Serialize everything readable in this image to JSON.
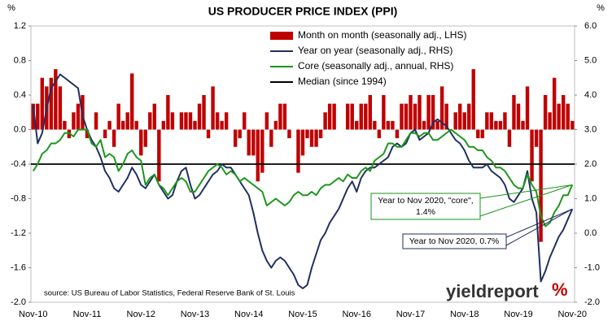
{
  "chart_data": {
    "type": "bar",
    "title": "US PRODUCER PRICE INDEX (PPI)",
    "y_unit": "%",
    "y2_unit": "%",
    "categories": [
      "Nov-10",
      null,
      null,
      null,
      null,
      null,
      null,
      null,
      null,
      null,
      null,
      null,
      "Nov-11",
      null,
      null,
      null,
      null,
      null,
      null,
      null,
      null,
      null,
      null,
      null,
      "Nov-12",
      null,
      null,
      null,
      null,
      null,
      null,
      null,
      null,
      null,
      null,
      null,
      "Nov-13",
      null,
      null,
      null,
      null,
      null,
      null,
      null,
      null,
      null,
      null,
      null,
      "Nov-14",
      null,
      null,
      null,
      null,
      null,
      null,
      null,
      null,
      null,
      null,
      null,
      "Nov-15",
      null,
      null,
      null,
      null,
      null,
      null,
      null,
      null,
      null,
      null,
      null,
      "Nov-16",
      null,
      null,
      null,
      null,
      null,
      null,
      null,
      null,
      null,
      null,
      null,
      "Nov-17",
      null,
      null,
      null,
      null,
      null,
      null,
      null,
      null,
      null,
      null,
      null,
      "Nov-18",
      null,
      null,
      null,
      null,
      null,
      null,
      null,
      null,
      null,
      null,
      null,
      "Nov-19",
      null,
      null,
      null,
      null,
      null,
      null,
      null,
      null,
      null,
      null,
      null,
      "Nov-20"
    ],
    "series": [
      {
        "name": "Month on month (seasonally adj., LHS)",
        "type": "bar",
        "color": "#c00000",
        "axis": "y",
        "values": [
          0.3,
          0.3,
          0.6,
          0.5,
          0.6,
          0.7,
          0.5,
          0.1,
          -0.1,
          0.2,
          0.3,
          0.4,
          -0.1,
          0.0,
          0.2,
          0.0,
          -0.1,
          0.1,
          -0.2,
          0.3,
          0.1,
          0.2,
          0.65,
          0.1,
          -0.3,
          -0.2,
          0.2,
          0.3,
          -0.6,
          0.1,
          0.4,
          0.2,
          0.0,
          0.2,
          0.2,
          0.2,
          0.1,
          0.3,
          0.4,
          -0.1,
          0.5,
          0.2,
          0.1,
          0.2,
          0.0,
          -0.2,
          -0.1,
          0.2,
          -0.3,
          -0.3,
          -0.6,
          -0.5,
          0.2,
          -0.2,
          0.1,
          0.3,
          0.3,
          -0.1,
          0.0,
          -0.5,
          -0.3,
          -0.1,
          -0.2,
          -0.2,
          -0.1,
          0.2,
          0.3,
          0.3,
          0.0,
          0.0,
          0.3,
          0.3,
          0.1,
          0.3,
          0.3,
          0.4,
          0.1,
          -0.1,
          0.4,
          0.1,
          0.1,
          -0.1,
          0.3,
          0.3,
          0.4,
          0.3,
          0.4,
          0.1,
          0.4,
          0.4,
          0.1,
          0.5,
          0.3,
          0.0,
          0.2,
          0.3,
          0.2,
          0.3,
          0.7,
          -0.1,
          -0.1,
          0.2,
          0.2,
          0.1,
          0.1,
          0.2,
          -0.2,
          0.4,
          0.3,
          0.1,
          0.5,
          -0.6,
          -0.2,
          -1.3,
          0.4,
          0.2,
          0.6,
          0.3,
          0.4,
          0.3,
          0.1
        ]
      },
      {
        "name": "Year on year (seasonally adj., RHS)",
        "type": "line",
        "color": "#1f2f5f",
        "axis": "y2",
        "values": [
          3.7,
          2.6,
          2.9,
          3.6,
          4.2,
          4.4,
          4.6,
          4.5,
          4.4,
          4.3,
          4.2,
          3.4,
          3.0,
          2.7,
          2.5,
          2.2,
          1.8,
          1.6,
          1.3,
          1.2,
          1.4,
          1.6,
          1.9,
          1.7,
          1.4,
          1.3,
          1.5,
          1.7,
          1.4,
          1.2,
          1.0,
          1.1,
          1.5,
          1.8,
          1.9,
          1.4,
          1.0,
          1.1,
          1.3,
          1.5,
          1.7,
          1.8,
          2.0,
          1.9,
          1.9,
          1.7,
          1.5,
          1.3,
          1.1,
          0.6,
          0.0,
          -0.5,
          -0.8,
          -1.0,
          -0.8,
          -0.7,
          -0.8,
          -1.0,
          -1.2,
          -1.5,
          -1.6,
          -1.5,
          -1.0,
          -0.6,
          -0.2,
          0.0,
          0.3,
          0.5,
          0.7,
          1.0,
          1.3,
          1.5,
          1.2,
          1.6,
          1.8,
          1.9,
          1.9,
          2.0,
          2.1,
          2.2,
          2.5,
          2.6,
          2.5,
          2.6,
          2.9,
          3.0,
          2.7,
          2.8,
          2.9,
          3.2,
          3.3,
          3.2,
          3.1,
          2.9,
          2.7,
          2.6,
          2.4,
          2.1,
          1.9,
          1.9,
          1.9,
          2.0,
          1.8,
          1.7,
          1.6,
          1.4,
          1.0,
          0.9,
          1.1,
          1.3,
          1.8,
          1.0,
          0.6,
          -1.4,
          -1.1,
          -0.7,
          -0.4,
          -0.1,
          0.1,
          0.4,
          0.7
        ]
      },
      {
        "name": "Core (seasonally adj., annual, RHS)",
        "type": "line",
        "color": "#1a961a",
        "axis": "y2",
        "values": [
          1.8,
          2.0,
          2.3,
          2.4,
          2.6,
          2.6,
          2.7,
          2.9,
          2.9,
          2.8,
          3.0,
          3.0,
          3.0,
          2.6,
          2.5,
          2.7,
          2.2,
          2.3,
          2.2,
          1.8,
          2.0,
          2.3,
          2.4,
          2.2,
          2.1,
          1.4,
          1.6,
          1.7,
          1.4,
          1.3,
          1.1,
          1.3,
          1.5,
          1.6,
          1.5,
          1.2,
          1.2,
          1.4,
          1.6,
          1.8,
          1.9,
          2.0,
          1.9,
          1.7,
          1.8,
          1.7,
          1.5,
          1.6,
          1.5,
          1.4,
          1.3,
          1.2,
          0.8,
          0.9,
          1.0,
          0.9,
          0.8,
          0.9,
          1.1,
          1.2,
          1.1,
          1.1,
          1.2,
          1.1,
          1.3,
          1.4,
          1.4,
          1.5,
          1.6,
          1.5,
          1.7,
          1.6,
          1.6,
          1.8,
          1.9,
          1.8,
          2.1,
          2.2,
          2.3,
          2.6,
          2.6,
          2.5,
          2.5,
          2.7,
          2.9,
          2.9,
          2.8,
          2.9,
          2.9,
          2.7,
          2.7,
          2.8,
          2.9,
          3.0,
          2.9,
          2.8,
          2.7,
          2.5,
          2.5,
          2.4,
          2.4,
          2.2,
          2.1,
          1.9,
          1.9,
          1.8,
          1.6,
          1.4,
          1.3,
          1.3,
          1.7,
          1.4,
          1.2,
          0.5,
          0.2,
          0.3,
          0.6,
          0.8,
          1.1,
          1.1,
          1.4
        ]
      }
    ],
    "reference_line": {
      "name": "Median (since 1994)",
      "color": "#000000",
      "value": -0.4
    },
    "ylim": [
      -2.0,
      1.2
    ],
    "yticks": [
      1.2,
      0.8,
      0.4,
      {
        "value": 0,
        "label": "0.0"
      },
      -0.4,
      -0.8,
      -1.2,
      -1.6,
      {
        "value": -2,
        "label": "-2.0"
      }
    ],
    "y2lim": [
      -2.0,
      6.0
    ],
    "y2ticks": [
      {
        "value": 6,
        "label": "6.0"
      },
      {
        "value": 5,
        "label": "5.0"
      },
      {
        "value": 4,
        "label": "4.0"
      },
      {
        "value": 3,
        "label": "3.0"
      },
      {
        "value": 2,
        "label": "2.0"
      },
      {
        "value": 1,
        "label": "1.0"
      },
      {
        "value": 0,
        "label": "0.0"
      },
      {
        "value": -1,
        "label": "-1.0"
      },
      {
        "value": -2,
        "label": "-2.0"
      }
    ],
    "annotations": [
      {
        "lines": [
          "Year to Nov 2020, \"core\",",
          "1.4%"
        ],
        "series": 2
      },
      {
        "lines": [
          "Year to Nov 2020, 0.7%"
        ],
        "series": 1
      }
    ],
    "source": "source: US Bureau of Labor Statistics, Federal Reserve Bank of St. Louis",
    "brand": {
      "name": "yieldreport",
      "mark": "%"
    }
  }
}
